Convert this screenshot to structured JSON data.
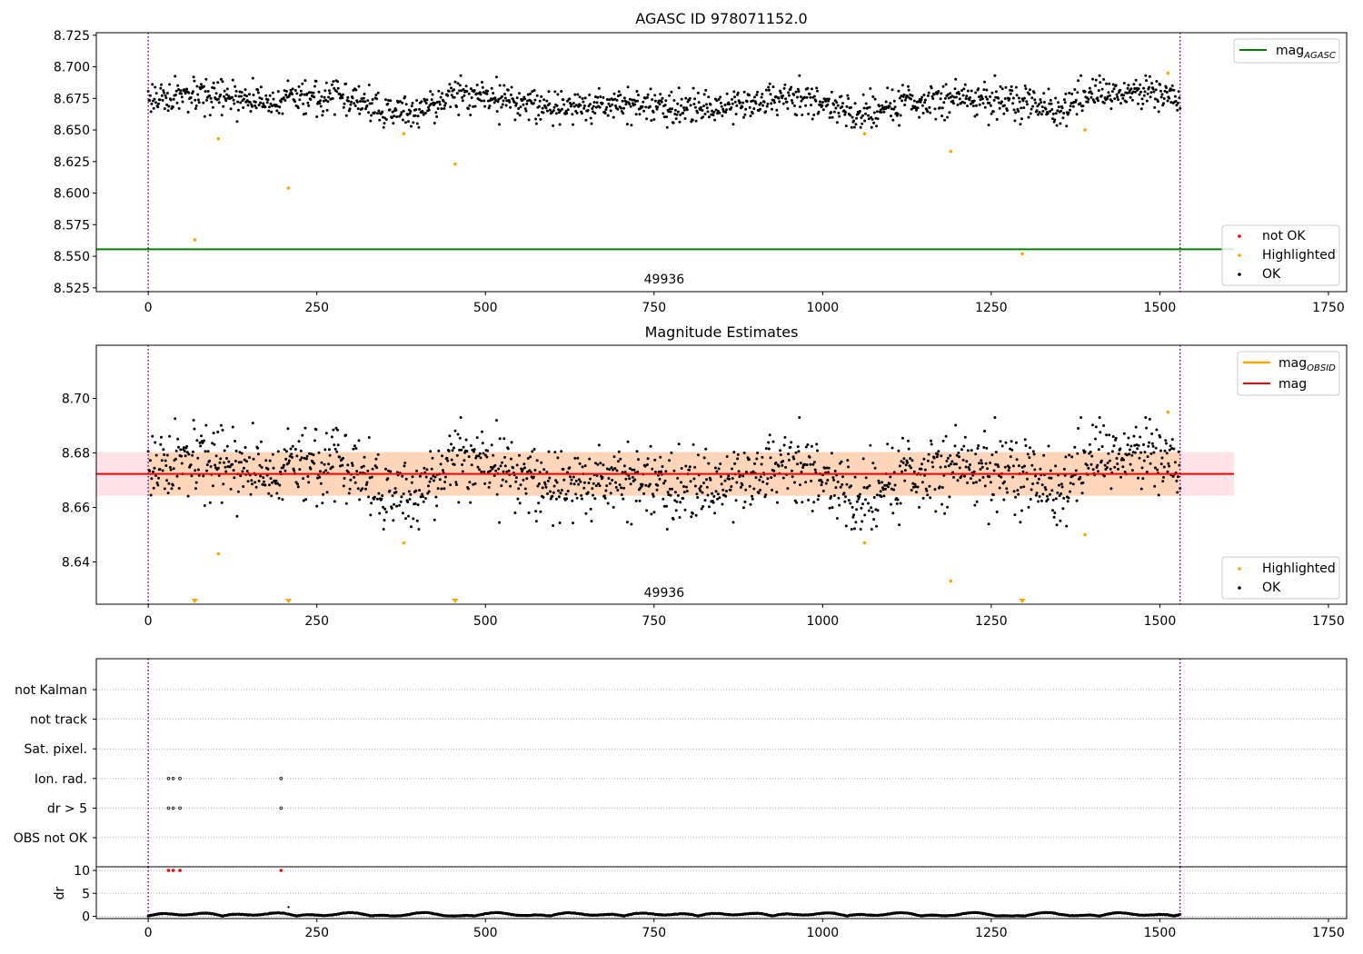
{
  "chart_data": [
    {
      "type": "scatter",
      "title": "AGASC ID 978071152.0",
      "xlabel": "",
      "ylabel": "",
      "xlim": [
        -77,
        1777
      ],
      "ylim": [
        8.522,
        8.727
      ],
      "x_ticks": [
        0,
        250,
        500,
        750,
        1000,
        1250,
        1500,
        1750
      ],
      "y_ticks": [
        8.525,
        8.55,
        8.575,
        8.6,
        8.625,
        8.65,
        8.675,
        8.7,
        8.725
      ],
      "x_tick_labels": [
        "0",
        "250",
        "500",
        "750",
        "1000",
        "1250",
        "1500",
        "1750"
      ],
      "y_tick_labels": [
        "8.525",
        "8.550",
        "8.575",
        "8.600",
        "8.625",
        "8.650",
        "8.675",
        "8.700",
        "8.725"
      ],
      "obsid_boundaries": [
        0,
        1530
      ],
      "obsid_label": "49936",
      "obsid_label_x": 765,
      "lines": [
        {
          "name": "mag",
          "sub": "AGASC",
          "y": 8.5555,
          "x_range": [
            -77,
            1610
          ],
          "color": "#008000"
        }
      ],
      "upper_legend": [
        {
          "name": "mag",
          "sub": "AGASC",
          "marker": "line",
          "color": "#008000"
        }
      ],
      "lower_legend": [
        {
          "name": "not OK",
          "marker": "dot",
          "color": "#ff0000"
        },
        {
          "name": "Highlighted",
          "marker": "dot",
          "color": "#ffa500"
        },
        {
          "name": "OK",
          "marker": "dot",
          "color": "#000000"
        }
      ],
      "ok_series": {
        "name": "OK",
        "color": "#000000",
        "x_range": [
          0,
          1530
        ],
        "n_points": 1500,
        "baseline": 8.6725,
        "spread": 0.0075,
        "seed": 17,
        "trend": [
          [
            0,
            8.676
          ],
          [
            100,
            8.675
          ],
          [
            200,
            8.673
          ],
          [
            280,
            8.679
          ],
          [
            330,
            8.667
          ],
          [
            400,
            8.663
          ],
          [
            460,
            8.681
          ],
          [
            520,
            8.674
          ],
          [
            600,
            8.668
          ],
          [
            700,
            8.671
          ],
          [
            800,
            8.667
          ],
          [
            900,
            8.672
          ],
          [
            950,
            8.676
          ],
          [
            1000,
            8.673
          ],
          [
            1060,
            8.662
          ],
          [
            1120,
            8.671
          ],
          [
            1200,
            8.675
          ],
          [
            1300,
            8.673
          ],
          [
            1350,
            8.665
          ],
          [
            1400,
            8.677
          ],
          [
            1500,
            8.681
          ],
          [
            1530,
            8.677
          ]
        ]
      },
      "highlighted": {
        "name": "Highlighted",
        "color": "#ffa500",
        "x": [
          69,
          104,
          208,
          379,
          455,
          1062,
          1190,
          1296,
          1389,
          1512
        ],
        "y": [
          8.563,
          8.643,
          8.604,
          8.647,
          8.623,
          8.647,
          8.633,
          8.552,
          8.65,
          8.695
        ]
      }
    },
    {
      "type": "scatter",
      "title": "Magnitude Estimates",
      "xlabel": "",
      "ylabel": "",
      "xlim": [
        -77,
        1777
      ],
      "ylim": [
        8.6245,
        8.7195
      ],
      "x_ticks": [
        0,
        250,
        500,
        750,
        1000,
        1250,
        1500,
        1750
      ],
      "y_ticks": [
        8.64,
        8.66,
        8.68,
        8.7
      ],
      "x_tick_labels": [
        "0",
        "250",
        "500",
        "750",
        "1000",
        "1250",
        "1500",
        "1750"
      ],
      "y_tick_labels": [
        "8.64",
        "8.66",
        "8.68",
        "8.70"
      ],
      "obsid_boundaries": [
        0,
        1530
      ],
      "obsid_label": "49936",
      "obsid_label_x": 765,
      "mag_line": {
        "name": "mag",
        "y": 8.6723,
        "x_range": [
          -77,
          1610
        ],
        "color": "#ff0000"
      },
      "mag_band": {
        "y_low": 8.6643,
        "y_high": 8.6803,
        "x_range": [
          -77,
          1610
        ],
        "color": "#ffc0cb"
      },
      "obsid_band": {
        "y_low": 8.6643,
        "y_high": 8.6803,
        "x_range": [
          0,
          1530
        ],
        "color": "#ffa500"
      },
      "upper_legend": [
        {
          "name": "mag",
          "sub": "OBSID",
          "marker": "line",
          "color": "#ffa500"
        },
        {
          "name": "mag",
          "sub": "",
          "marker": "line",
          "color": "#ff0000"
        }
      ],
      "lower_legend": [
        {
          "name": "Highlighted",
          "marker": "dot",
          "color": "#ffa500"
        },
        {
          "name": "OK",
          "marker": "dot",
          "color": "#000000"
        }
      ],
      "highlighted": {
        "name": "Highlighted",
        "color": "#ffa500",
        "x": [
          104,
          379,
          1062,
          1190,
          1389,
          1512
        ],
        "y": [
          8.643,
          8.647,
          8.647,
          8.633,
          8.65,
          8.695
        ]
      },
      "clipped_markers": {
        "x": [
          69,
          208,
          455,
          1296
        ],
        "color": "#ffa500"
      }
    },
    {
      "type": "scatter",
      "title": "",
      "xlim": [
        -77,
        1777
      ],
      "flag_rows": [
        "not Kalman",
        "not track",
        "Sat. pixel.",
        "Ion. rad.",
        "dr > 5",
        "OBS not OK"
      ],
      "flag_points": {
        "Ion. rad.": [
          30,
          37,
          47,
          197
        ],
        "dr > 5": [
          30,
          37,
          47,
          197
        ]
      },
      "obsid_boundaries": [
        0,
        1530
      ]
    },
    {
      "type": "scatter",
      "title": "",
      "xlabel": "",
      "ylabel": "dr",
      "xlim": [
        -77,
        1777
      ],
      "ylim": [
        -0.5,
        10.8
      ],
      "x_ticks": [
        0,
        250,
        500,
        750,
        1000,
        1250,
        1500,
        1750
      ],
      "y_ticks": [
        0,
        5,
        10
      ],
      "x_tick_labels": [
        "0",
        "250",
        "500",
        "750",
        "1000",
        "1250",
        "1500",
        "1750"
      ],
      "y_tick_labels": [
        "0",
        "5",
        "10"
      ],
      "obsid_boundaries": [
        0,
        1530
      ],
      "dr_series": {
        "color": "#000000",
        "x_range": [
          0,
          1530
        ],
        "n_points": 1500,
        "max": 1.0,
        "seed": 5
      },
      "high_dr": {
        "x": [
          30,
          37,
          47,
          197
        ],
        "y": [
          10,
          10,
          10,
          10
        ],
        "color": "#ff0000"
      },
      "outliers": {
        "x": [
          208
        ],
        "y": [
          2.0
        ]
      }
    }
  ]
}
